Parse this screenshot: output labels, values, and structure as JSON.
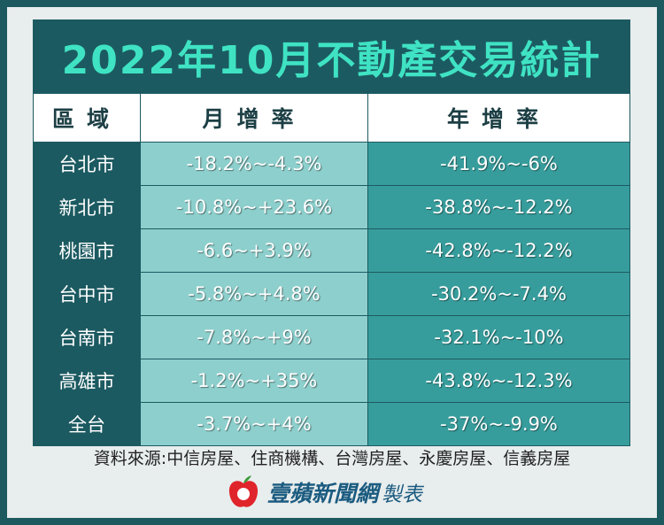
{
  "header": {
    "title": "2022年10月不動產交易統計"
  },
  "table": {
    "headers": [
      "區域",
      "月增率",
      "年增率"
    ],
    "rows": [
      [
        "台北市",
        "-18.2%~-4.3%",
        "-41.9%~-6%"
      ],
      [
        "新北市",
        "-10.8%~+23.6%",
        "-38.8%~-12.2%"
      ],
      [
        "桃園市",
        "-6.6~+3.9%",
        "-42.8%~-12.2%"
      ],
      [
        "台中市",
        "-5.8%~+4.8%",
        "-30.2%~-7.4%"
      ],
      [
        "台南市",
        "-7.8%~+9%",
        "-32.1%~-10%"
      ],
      [
        "高雄市",
        "-1.2%~+35%",
        "-43.8%~-12.3%"
      ],
      [
        "全台",
        "-3.7%~+4%",
        "-37%~-9.9%"
      ]
    ]
  },
  "source": "資料來源:中信房屋、住商機構、台灣房屋、永慶房屋、信義房屋",
  "footer": {
    "brand": "壹蘋新聞網",
    "suffix": "製表"
  }
}
